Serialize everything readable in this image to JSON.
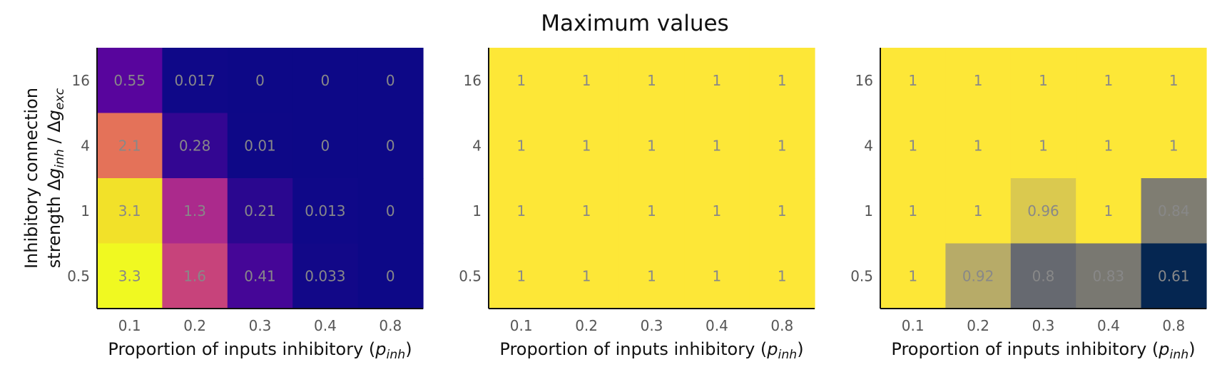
{
  "figure": {
    "title": "Maximum values"
  },
  "chart_data": [
    {
      "type": "heatmap",
      "colormap": "plasma",
      "x_categories": [
        "0.1",
        "0.2",
        "0.3",
        "0.4",
        "0.8"
      ],
      "y_categories": [
        "16",
        "4",
        "1",
        "0.5"
      ],
      "xlabel": "Proportion of inputs inhibitory (p_inh)",
      "ylabel": "Inhibitory connection strength Δg_inh / Δg_exc",
      "values": [
        [
          0.55,
          0.017,
          0,
          0,
          0
        ],
        [
          2.1,
          0.28,
          0.01,
          0,
          0
        ],
        [
          3.1,
          1.3,
          0.21,
          0.013,
          0
        ],
        [
          3.3,
          1.6,
          0.41,
          0.033,
          0
        ]
      ],
      "labels": [
        [
          "0.55",
          "0.017",
          "0",
          "0",
          "0"
        ],
        [
          "2.1",
          "0.28",
          "0.01",
          "0",
          "0"
        ],
        [
          "3.1",
          "1.3",
          "0.21",
          "0.013",
          "0"
        ],
        [
          "3.3",
          "1.6",
          "0.41",
          "0.033",
          "0"
        ]
      ],
      "vmin": 0,
      "vmax": 3.3
    },
    {
      "type": "heatmap",
      "colormap": "cividis",
      "x_categories": [
        "0.1",
        "0.2",
        "0.3",
        "0.4",
        "0.8"
      ],
      "y_categories": [
        "16",
        "4",
        "1",
        "0.5"
      ],
      "xlabel": "Proportion of inputs inhibitory (p_inh)",
      "ylabel": "",
      "values": [
        [
          1,
          1,
          1,
          1,
          1
        ],
        [
          1,
          1,
          1,
          1,
          1
        ],
        [
          1,
          1,
          1,
          1,
          1
        ],
        [
          1,
          1,
          1,
          1,
          1
        ]
      ],
      "labels": [
        [
          "1",
          "1",
          "1",
          "1",
          "1"
        ],
        [
          "1",
          "1",
          "1",
          "1",
          "1"
        ],
        [
          "1",
          "1",
          "1",
          "1",
          "1"
        ],
        [
          "1",
          "1",
          "1",
          "1",
          "1"
        ]
      ],
      "vmin": 0.6,
      "vmax": 1
    },
    {
      "type": "heatmap",
      "colormap": "cividis",
      "x_categories": [
        "0.1",
        "0.2",
        "0.3",
        "0.4",
        "0.8"
      ],
      "y_categories": [
        "16",
        "4",
        "1",
        "0.5"
      ],
      "xlabel": "Proportion of inputs inhibitory (p_inh)",
      "ylabel": "",
      "values": [
        [
          1,
          1,
          1,
          1,
          1
        ],
        [
          1,
          1,
          1,
          1,
          1
        ],
        [
          1,
          1,
          0.96,
          1,
          0.84
        ],
        [
          1,
          0.92,
          0.8,
          0.83,
          0.61
        ]
      ],
      "labels": [
        [
          "1",
          "1",
          "1",
          "1",
          "1"
        ],
        [
          "1",
          "1",
          "1",
          "1",
          "1"
        ],
        [
          "1",
          "1",
          "0.96",
          "1",
          "0.84"
        ],
        [
          "1",
          "0.92",
          "0.8",
          "0.83",
          "0.61"
        ]
      ],
      "vmin": 0.6,
      "vmax": 1
    }
  ]
}
